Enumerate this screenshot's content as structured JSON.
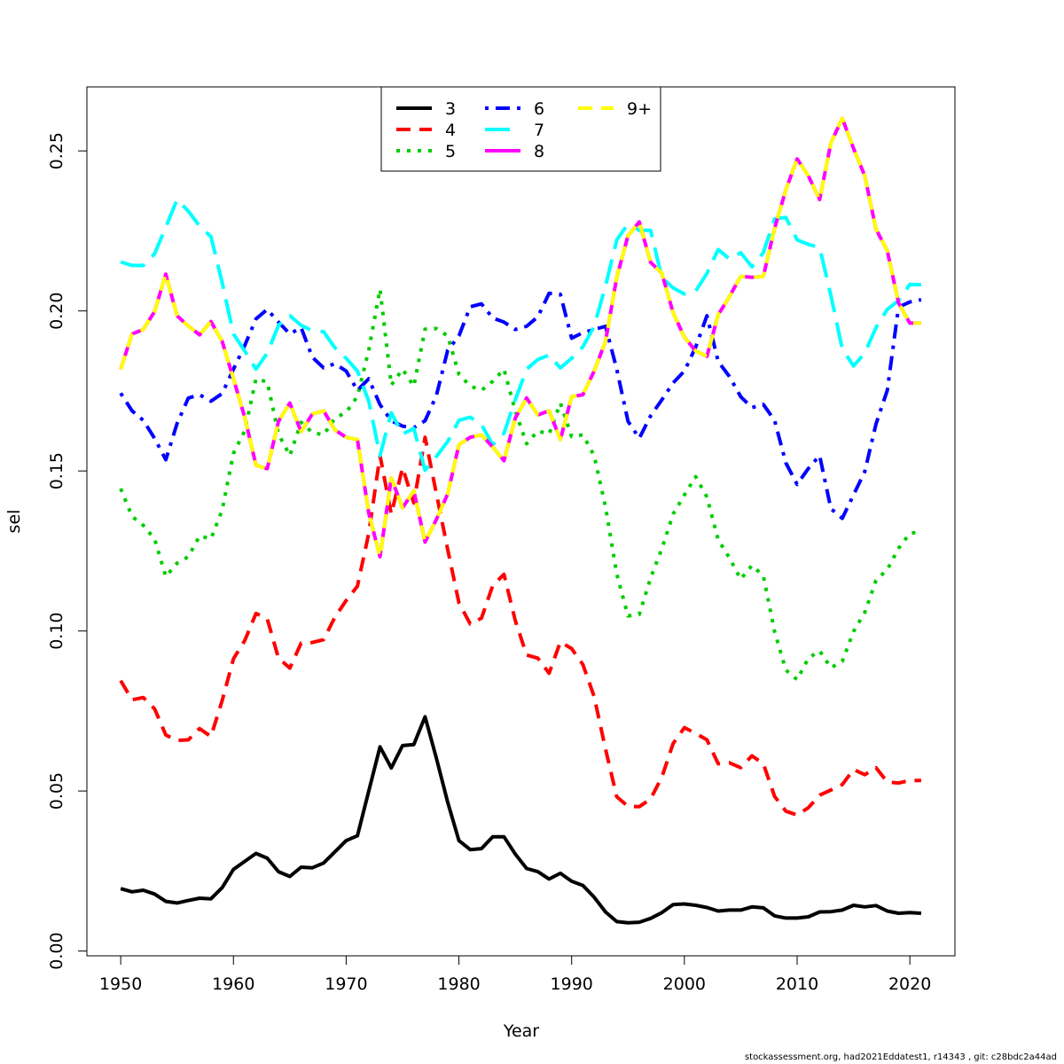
{
  "footer_text": "stockassessment.org, had2021Eddatest1, r14343 , git: c28bdc2a44ad",
  "chart_data": {
    "type": "line",
    "title": "",
    "xlabel": "Year",
    "ylabel": "sel",
    "xlim": [
      1947,
      2024
    ],
    "ylim": [
      -0.0015,
      0.27
    ],
    "x_ticks": [
      1950,
      1960,
      1970,
      1980,
      1990,
      2000,
      2010,
      2020
    ],
    "y_ticks": [
      0.0,
      0.05,
      0.1,
      0.15,
      0.2,
      0.25
    ],
    "y_tick_labels": [
      "0.00",
      "0.05",
      "0.10",
      "0.15",
      "0.20",
      "0.25"
    ],
    "grid": false,
    "legend_position": "top-center",
    "x": [
      1950,
      1951,
      1952,
      1953,
      1954,
      1955,
      1956,
      1957,
      1958,
      1959,
      1960,
      1961,
      1962,
      1963,
      1964,
      1965,
      1966,
      1967,
      1968,
      1969,
      1970,
      1971,
      1972,
      1973,
      1974,
      1975,
      1976,
      1977,
      1978,
      1979,
      1980,
      1981,
      1982,
      1983,
      1984,
      1985,
      1986,
      1987,
      1988,
      1989,
      1990,
      1991,
      1992,
      1993,
      1994,
      1995,
      1996,
      1997,
      1998,
      1999,
      2000,
      2001,
      2002,
      2003,
      2004,
      2005,
      2006,
      2007,
      2008,
      2009,
      2010,
      2011,
      2012,
      2013,
      2014,
      2015,
      2016,
      2017,
      2018,
      2019,
      2020,
      2021
    ],
    "series": [
      {
        "name": "3",
        "color": "#000000",
        "dash": "solid",
        "width": 4,
        "values": [
          0.0195,
          0.0185,
          0.019,
          0.0178,
          0.0155,
          0.015,
          0.0158,
          0.0165,
          0.0163,
          0.0198,
          0.0255,
          0.028,
          0.0305,
          0.029,
          0.0248,
          0.0233,
          0.0262,
          0.026,
          0.0275,
          0.031,
          0.0345,
          0.036,
          0.05,
          0.0638,
          0.0572,
          0.0642,
          0.0645,
          0.0732,
          0.0603,
          0.0465,
          0.0345,
          0.0317,
          0.032,
          0.0357,
          0.0357,
          0.0303,
          0.0258,
          0.0248,
          0.0225,
          0.0243,
          0.0218,
          0.0205,
          0.0168,
          0.0122,
          0.0092,
          0.0088,
          0.009,
          0.0102,
          0.012,
          0.0145,
          0.0147,
          0.0143,
          0.0136,
          0.0125,
          0.0128,
          0.0128,
          0.0138,
          0.0135,
          0.011,
          0.0103,
          0.0103,
          0.0107,
          0.0122,
          0.0123,
          0.0128,
          0.0143,
          0.0138,
          0.0142,
          0.0125,
          0.0118,
          0.012,
          0.0118
        ]
      },
      {
        "name": "4",
        "color": "#ff0000",
        "dash": "dashed",
        "width": 4,
        "values": [
          0.0845,
          0.0785,
          0.0792,
          0.0757,
          0.0675,
          0.0658,
          0.066,
          0.0695,
          0.067,
          0.0783,
          0.0913,
          0.097,
          0.1055,
          0.1038,
          0.0915,
          0.0884,
          0.0962,
          0.0964,
          0.0973,
          0.1043,
          0.1095,
          0.114,
          0.1305,
          0.1548,
          0.1365,
          0.151,
          0.14,
          0.1605,
          0.143,
          0.1255,
          0.1088,
          0.1022,
          0.104,
          0.1142,
          0.1177,
          0.1033,
          0.0925,
          0.0915,
          0.0868,
          0.0966,
          0.0945,
          0.0895,
          0.0795,
          0.0631,
          0.0482,
          0.0452,
          0.0451,
          0.0475,
          0.0543,
          0.0648,
          0.0698,
          0.068,
          0.066,
          0.0585,
          0.0588,
          0.0573,
          0.061,
          0.0585,
          0.0483,
          0.0437,
          0.0425,
          0.0448,
          0.0487,
          0.0503,
          0.052,
          0.0567,
          0.0551,
          0.0573,
          0.0528,
          0.0525,
          0.0533,
          0.0533
        ]
      },
      {
        "name": "5",
        "color": "#00cd00",
        "dash": "dotted",
        "width": 4,
        "values": [
          0.1445,
          0.1358,
          0.133,
          0.1288,
          0.117,
          0.1212,
          0.1232,
          0.1297,
          0.1288,
          0.1378,
          0.1555,
          0.1625,
          0.1788,
          0.1778,
          0.1615,
          0.1548,
          0.1652,
          0.162,
          0.1613,
          0.1665,
          0.1683,
          0.1733,
          0.1878,
          0.2068,
          0.1768,
          0.1818,
          0.1765,
          0.1943,
          0.1945,
          0.1922,
          0.1802,
          0.1765,
          0.1752,
          0.178,
          0.1818,
          0.1688,
          0.1585,
          0.1625,
          0.1615,
          0.1712,
          0.1607,
          0.1613,
          0.1548,
          0.1388,
          0.1178,
          0.1047,
          0.1052,
          0.1165,
          0.1257,
          0.1365,
          0.1425,
          0.1482,
          0.1418,
          0.1285,
          0.1228,
          0.1162,
          0.1205,
          0.1172,
          0.0998,
          0.0878,
          0.0848,
          0.0915,
          0.0938,
          0.0885,
          0.0905,
          0.0998,
          0.1058,
          0.1158,
          0.1192,
          0.1258,
          0.1305,
          0.131
        ]
      },
      {
        "name": "6",
        "color": "#0000ff",
        "dash": "dashdot",
        "width": 4,
        "values": [
          0.1743,
          0.1688,
          0.1658,
          0.1602,
          0.1535,
          0.1648,
          0.1728,
          0.1738,
          0.1718,
          0.1742,
          0.1818,
          0.1892,
          0.1975,
          0.2005,
          0.1965,
          0.1928,
          0.1948,
          0.1855,
          0.1822,
          0.1835,
          0.1812,
          0.1752,
          0.1788,
          0.1707,
          0.1657,
          0.164,
          0.1635,
          0.1657,
          0.1735,
          0.1877,
          0.1922,
          0.2013,
          0.2022,
          0.1978,
          0.1965,
          0.1942,
          0.1952,
          0.1982,
          0.2055,
          0.2052,
          0.1915,
          0.1932,
          0.1942,
          0.1952,
          0.1818,
          0.1655,
          0.1602,
          0.1672,
          0.1722,
          0.1775,
          0.1812,
          0.1887,
          0.1985,
          0.1842,
          0.1795,
          0.1732,
          0.1698,
          0.1708,
          0.1658,
          0.1525,
          0.1458,
          0.1508,
          0.1548,
          0.1382,
          0.1352,
          0.1425,
          0.1498,
          0.1647,
          0.1752,
          0.2012,
          0.2028,
          0.2035
        ]
      },
      {
        "name": "7",
        "color": "#00ffff",
        "dash": "longdash",
        "width": 4,
        "values": [
          0.2153,
          0.2142,
          0.2142,
          0.2178,
          0.2262,
          0.2348,
          0.2312,
          0.2265,
          0.2232,
          0.2088,
          0.1928,
          0.1875,
          0.1818,
          0.1868,
          0.1955,
          0.1985,
          0.1955,
          0.1938,
          0.1935,
          0.1885,
          0.1852,
          0.1812,
          0.1718,
          0.1548,
          0.1682,
          0.1615,
          0.1633,
          0.1502,
          0.1545,
          0.1592,
          0.1658,
          0.1668,
          0.1645,
          0.1582,
          0.1618,
          0.1722,
          0.1818,
          0.1848,
          0.1862,
          0.1822,
          0.1852,
          0.1888,
          0.1952,
          0.2078,
          0.2222,
          0.2272,
          0.2252,
          0.2252,
          0.2105,
          0.2072,
          0.2053,
          0.2062,
          0.2117,
          0.2192,
          0.2162,
          0.2182,
          0.2138,
          0.2182,
          0.2288,
          0.2292,
          0.2222,
          0.2208,
          0.2198,
          0.2048,
          0.1882,
          0.1828,
          0.1868,
          0.1948,
          0.2005,
          0.2032,
          0.2083,
          0.2082
        ]
      },
      {
        "name": "8",
        "color": "#ff00ff",
        "dash": "solid",
        "width": 4,
        "values": [
          0.1818,
          0.1928,
          0.1942,
          0.1998,
          0.2115,
          0.1985,
          0.1953,
          0.1925,
          0.1967,
          0.1905,
          0.1788,
          0.1668,
          0.1518,
          0.1507,
          0.1655,
          0.1712,
          0.1623,
          0.1678,
          0.1688,
          0.1628,
          0.1605,
          0.1598,
          0.1368,
          0.1232,
          0.1478,
          0.1385,
          0.1438,
          0.1278,
          0.1348,
          0.1428,
          0.1582,
          0.1605,
          0.1613,
          0.1575,
          0.1532,
          0.1665,
          0.1728,
          0.1675,
          0.1688,
          0.1598,
          0.1732,
          0.1738,
          0.1812,
          0.1905,
          0.2105,
          0.2235,
          0.2278,
          0.2152,
          0.2118,
          0.1995,
          0.1918,
          0.1875,
          0.1858,
          0.1988,
          0.2045,
          0.2108,
          0.2105,
          0.2108,
          0.2258,
          0.2378,
          0.2475,
          0.2422,
          0.2348,
          0.2525,
          0.2602,
          0.2508,
          0.2422,
          0.2255,
          0.2188,
          0.2025,
          0.1962,
          0.1962
        ]
      },
      {
        "name": "9+",
        "color": "#ffff00",
        "dash": "dashed",
        "width": 4,
        "values": [
          0.1818,
          0.1928,
          0.1942,
          0.1998,
          0.2115,
          0.1985,
          0.1953,
          0.1925,
          0.1967,
          0.1905,
          0.1788,
          0.1668,
          0.1518,
          0.1507,
          0.1655,
          0.1712,
          0.1623,
          0.1678,
          0.1688,
          0.1628,
          0.1605,
          0.1598,
          0.1368,
          0.1232,
          0.1478,
          0.1385,
          0.1438,
          0.1278,
          0.1348,
          0.1428,
          0.1582,
          0.1605,
          0.1613,
          0.1575,
          0.1532,
          0.1665,
          0.1728,
          0.1675,
          0.1688,
          0.1598,
          0.1732,
          0.1738,
          0.1812,
          0.1905,
          0.2105,
          0.2235,
          0.2278,
          0.2152,
          0.2118,
          0.1995,
          0.1918,
          0.1875,
          0.1858,
          0.1988,
          0.2045,
          0.2108,
          0.2105,
          0.2108,
          0.2258,
          0.2378,
          0.2475,
          0.2422,
          0.2348,
          0.2525,
          0.2602,
          0.2508,
          0.2422,
          0.2255,
          0.2188,
          0.2025,
          0.1962,
          0.1962
        ]
      }
    ]
  }
}
